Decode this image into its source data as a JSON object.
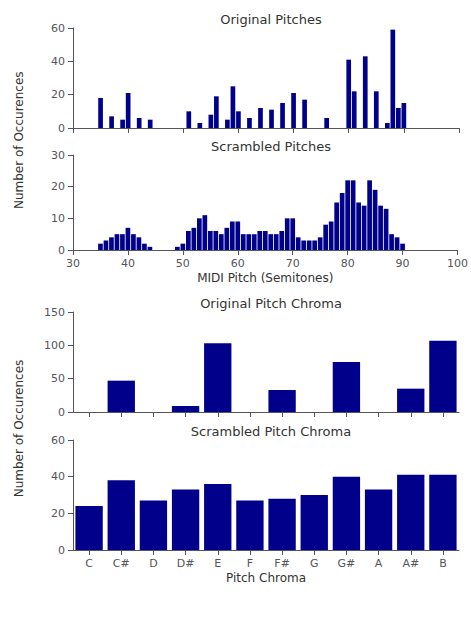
{
  "chart_data": [
    {
      "type": "bar",
      "title": "Original Pitches",
      "x": [
        35,
        36,
        37,
        38,
        39,
        40,
        41,
        42,
        43,
        44,
        45,
        46,
        47,
        48,
        49,
        50,
        51,
        52,
        53,
        54,
        55,
        56,
        57,
        58,
        59,
        60,
        61,
        62,
        63,
        64,
        65,
        66,
        67,
        68,
        69,
        70,
        71,
        72,
        73,
        74,
        75,
        76,
        77,
        78,
        79,
        80,
        81,
        82,
        83,
        84,
        85,
        86,
        87,
        88,
        89,
        90
      ],
      "values": [
        18,
        0,
        7,
        0,
        5,
        21,
        0,
        6,
        0,
        5,
        0,
        0,
        0,
        0,
        0,
        0,
        10,
        0,
        3,
        0,
        8,
        19,
        0,
        5,
        25,
        10,
        0,
        6,
        0,
        12,
        0,
        11,
        0,
        15,
        0,
        21,
        0,
        17,
        0,
        0,
        0,
        6,
        0,
        0,
        0,
        41,
        22,
        0,
        43,
        0,
        22,
        0,
        3,
        59,
        12,
        15
      ],
      "color": "#00008B",
      "xlim": [
        30,
        100
      ],
      "xticks": [
        30,
        40,
        50,
        60,
        70,
        80,
        90,
        100
      ],
      "ylim": [
        0,
        60
      ],
      "yticks": [
        0,
        20,
        40,
        60
      ],
      "ylabel": "Number of Occurences",
      "tick_labels": "y",
      "grid": false
    },
    {
      "type": "bar",
      "title": "Scrambled Pitches",
      "x": [
        35,
        36,
        37,
        38,
        39,
        40,
        41,
        42,
        43,
        44,
        45,
        46,
        47,
        48,
        49,
        50,
        51,
        52,
        53,
        54,
        55,
        56,
        57,
        58,
        59,
        60,
        61,
        62,
        63,
        64,
        65,
        66,
        67,
        68,
        69,
        70,
        71,
        72,
        73,
        74,
        75,
        76,
        77,
        78,
        79,
        80,
        81,
        82,
        83,
        84,
        85,
        86,
        87,
        88,
        89,
        90
      ],
      "values": [
        2,
        3,
        4,
        5,
        5,
        7,
        5,
        4,
        2,
        1,
        0,
        0,
        0,
        0,
        1,
        2,
        6,
        7,
        10,
        11,
        6,
        6,
        5,
        7,
        9,
        9,
        5,
        5,
        5,
        6,
        6,
        5,
        5,
        6,
        10,
        10,
        4,
        3,
        3,
        3,
        4,
        8,
        9,
        15,
        18,
        22,
        22,
        15,
        14,
        22,
        19,
        14,
        13,
        5,
        4,
        2
      ],
      "color": "#00008B",
      "xlim": [
        30,
        100
      ],
      "xticks": [
        30,
        40,
        50,
        60,
        70,
        80,
        90,
        100
      ],
      "ylim": [
        0,
        30
      ],
      "yticks": [
        0,
        10,
        20,
        30
      ],
      "xlabel": "MIDI Pitch (Semitones)",
      "grid": false
    },
    {
      "type": "bar",
      "title": "Original Pitch Chroma",
      "categories": [
        "C",
        "C#",
        "D",
        "D#",
        "E",
        "F",
        "F#",
        "G",
        "G#",
        "A",
        "A#",
        "B"
      ],
      "values": [
        0,
        47,
        0,
        9,
        103,
        0,
        33,
        0,
        75,
        0,
        35,
        107
      ],
      "color": "#00008B",
      "ylim": [
        0,
        150
      ],
      "yticks": [
        0,
        50,
        100,
        150
      ],
      "ylabel": "Number of Occurences",
      "tick_labels": "y",
      "grid": false
    },
    {
      "type": "bar",
      "title": "Scrambled Pitch Chroma",
      "categories": [
        "C",
        "C#",
        "D",
        "D#",
        "E",
        "F",
        "F#",
        "G",
        "G#",
        "A",
        "A#",
        "B"
      ],
      "values": [
        24,
        38,
        27,
        33,
        36,
        27,
        28,
        30,
        40,
        33,
        41,
        41
      ],
      "color": "#00008B",
      "ylim": [
        0,
        60
      ],
      "yticks": [
        0,
        20,
        40,
        60
      ],
      "xlabel": "Pitch Chroma",
      "grid": false
    }
  ]
}
